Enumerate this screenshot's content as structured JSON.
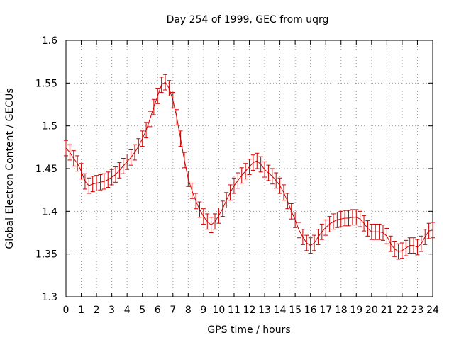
{
  "chart_data": {
    "type": "line",
    "title": "Day 254 of 1999, GEC from uqrg",
    "xlabel": "GPS time / hours",
    "ylabel": "Global Electron Content / GECUs",
    "xlim": [
      0,
      24
    ],
    "ylim": [
      1.3,
      1.6
    ],
    "grid": true,
    "line_color": "#cc0000",
    "x_ticks": [
      0,
      1,
      2,
      3,
      4,
      5,
      6,
      7,
      8,
      9,
      10,
      11,
      12,
      13,
      14,
      15,
      16,
      17,
      18,
      19,
      20,
      21,
      22,
      23,
      24
    ],
    "x_tick_labels": [
      "0",
      "1",
      "2",
      "3",
      "4",
      "5",
      "6",
      "7",
      "8",
      "9",
      "10",
      "11",
      "12",
      "13",
      "14",
      "15",
      "16",
      "17",
      "18",
      "19",
      "20",
      "21",
      "22",
      "23",
      "24"
    ],
    "y_ticks": [
      1.3,
      1.35,
      1.4,
      1.45,
      1.5,
      1.55,
      1.6
    ],
    "y_tick_labels": [
      "1.3",
      "1.35",
      "1.4",
      "1.45",
      "1.5",
      "1.55",
      "1.6"
    ],
    "series": [
      {
        "name": "GEC",
        "error": 0.009,
        "x": [
          0,
          0.25,
          0.5,
          0.75,
          1,
          1.25,
          1.5,
          1.75,
          2,
          2.25,
          2.5,
          2.75,
          3,
          3.25,
          3.5,
          3.75,
          4,
          4.25,
          4.5,
          4.75,
          5,
          5.25,
          5.5,
          5.75,
          6,
          6.25,
          6.5,
          6.75,
          7,
          7.25,
          7.5,
          7.75,
          8,
          8.25,
          8.5,
          8.75,
          9,
          9.25,
          9.5,
          9.75,
          10,
          10.25,
          10.5,
          10.75,
          11,
          11.25,
          11.5,
          11.75,
          12,
          12.25,
          12.5,
          12.75,
          13,
          13.25,
          13.5,
          13.75,
          14,
          14.25,
          14.5,
          14.75,
          15,
          15.25,
          15.5,
          15.75,
          16,
          16.25,
          16.5,
          16.75,
          17,
          17.25,
          17.5,
          17.75,
          18,
          18.25,
          18.5,
          18.75,
          19,
          19.25,
          19.5,
          19.75,
          20,
          20.25,
          20.5,
          20.75,
          21,
          21.25,
          21.5,
          21.75,
          22,
          22.25,
          22.5,
          22.75,
          23,
          23.25,
          23.5,
          23.75,
          24
        ],
        "y": [
          1.474,
          1.469,
          1.462,
          1.456,
          1.447,
          1.435,
          1.43,
          1.432,
          1.433,
          1.434,
          1.435,
          1.437,
          1.44,
          1.443,
          1.448,
          1.453,
          1.458,
          1.463,
          1.469,
          1.476,
          1.485,
          1.495,
          1.508,
          1.522,
          1.535,
          1.548,
          1.551,
          1.544,
          1.53,
          1.51,
          1.485,
          1.46,
          1.438,
          1.424,
          1.412,
          1.402,
          1.394,
          1.388,
          1.384,
          1.388,
          1.395,
          1.403,
          1.413,
          1.422,
          1.43,
          1.436,
          1.442,
          1.447,
          1.452,
          1.457,
          1.459,
          1.455,
          1.449,
          1.445,
          1.441,
          1.436,
          1.43,
          1.422,
          1.412,
          1.4,
          1.39,
          1.378,
          1.37,
          1.363,
          1.36,
          1.363,
          1.37,
          1.376,
          1.381,
          1.385,
          1.388,
          1.39,
          1.391,
          1.392,
          1.392,
          1.393,
          1.393,
          1.391,
          1.386,
          1.38,
          1.376,
          1.376,
          1.376,
          1.375,
          1.371,
          1.362,
          1.356,
          1.353,
          1.354,
          1.357,
          1.36,
          1.36,
          1.358,
          1.362,
          1.37,
          1.377,
          1.378
        ]
      }
    ]
  }
}
